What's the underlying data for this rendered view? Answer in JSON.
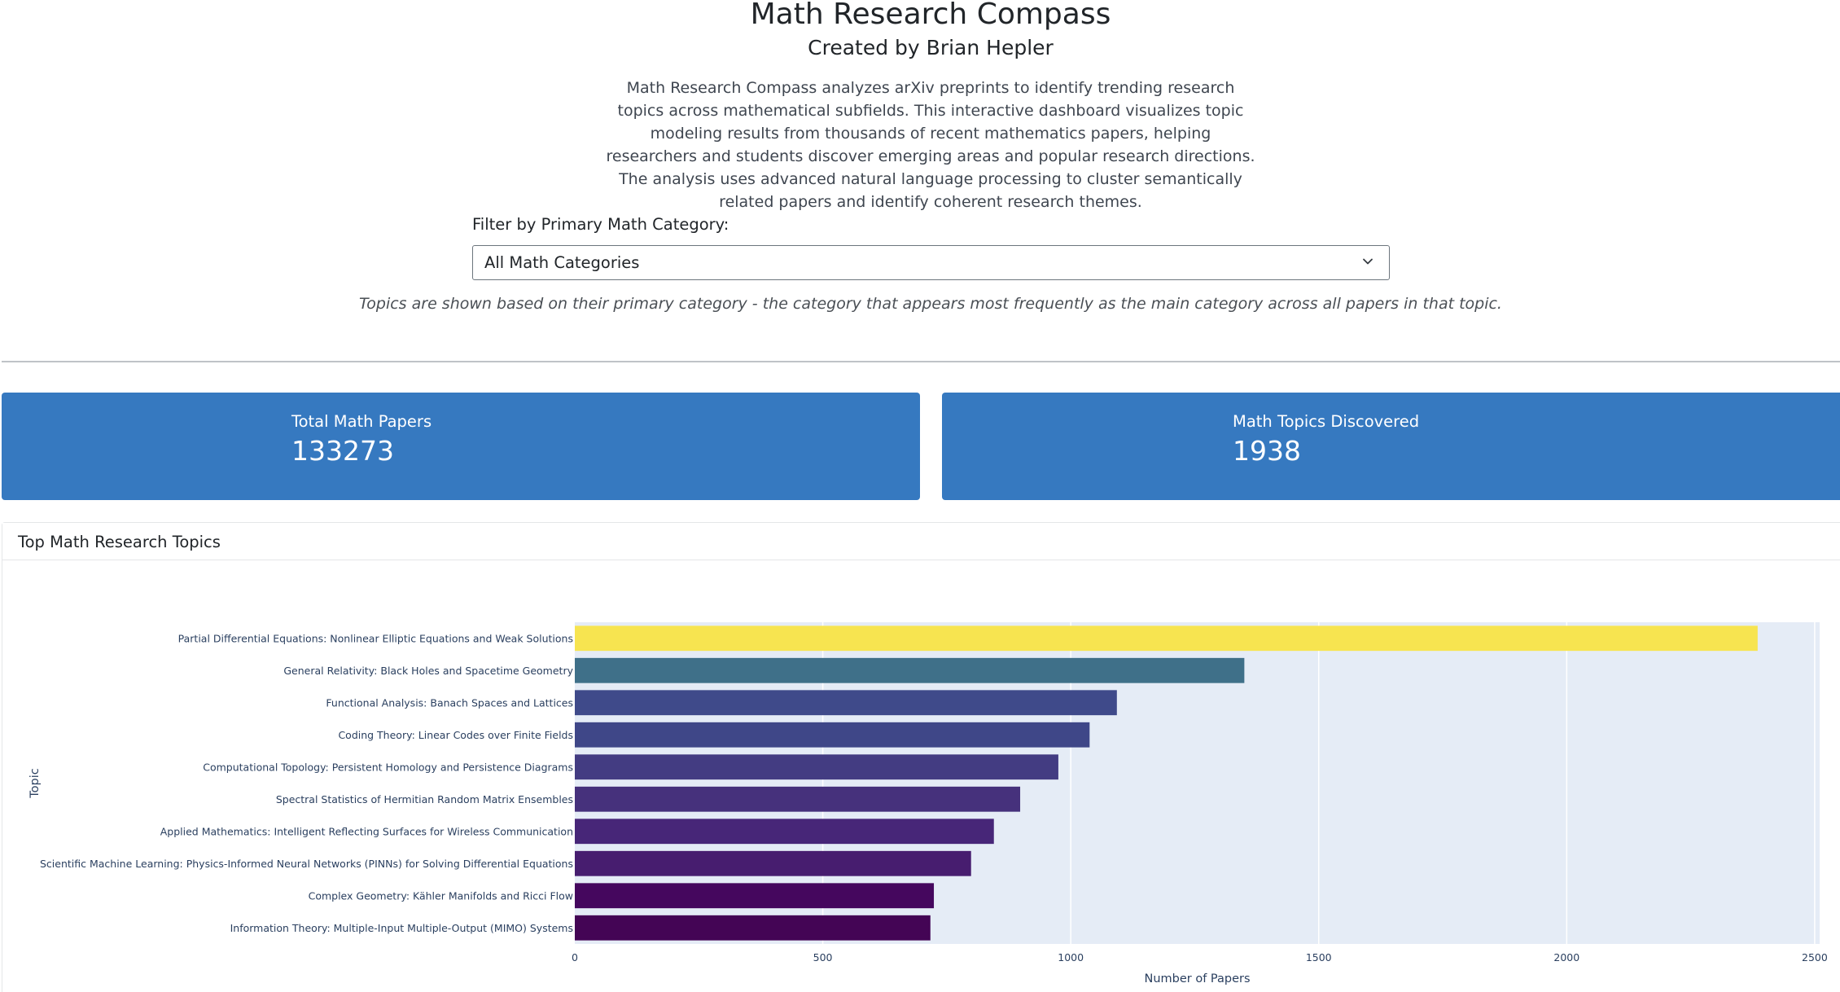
{
  "header": {
    "title": "Math Research Compass",
    "subtitle": "Created by Brian Hepler",
    "description": "Math Research Compass analyzes arXiv preprints to identify trending research topics across mathematical subfields. This interactive dashboard visualizes topic modeling results from thousands of recent mathematics papers, helping researchers and students discover emerging areas and popular research directions. The analysis uses advanced natural language processing to cluster semantically related papers and identify coherent research themes."
  },
  "filter": {
    "label": "Filter by Primary Math Category:",
    "selected": "All Math Categories",
    "note": "Topics are shown based on their primary category - the category that appears most frequently as the main category across all papers in that topic."
  },
  "stats": {
    "total_papers_label": "Total Math Papers",
    "total_papers_value": "133273",
    "topics_label": "Math Topics Discovered",
    "topics_value": "1938"
  },
  "chart_card": {
    "title": "Top Math Research Topics"
  },
  "colors": {
    "accent": "#3679c0",
    "plot_bg": "#e5ecf6"
  },
  "chart_data": {
    "type": "bar",
    "orientation": "horizontal",
    "xlabel": "Number of Papers",
    "ylabel": "Topic",
    "xlim": [
      0,
      2510
    ],
    "xticks": [
      0,
      500,
      1000,
      1500,
      2000,
      2500
    ],
    "grid": true,
    "categories": [
      "Partial Differential Equations: Nonlinear Elliptic Equations and Weak Solutions",
      "General Relativity: Black Holes and Spacetime Geometry",
      "Functional Analysis: Banach Spaces and Lattices",
      "Coding Theory: Linear Codes over Finite Fields",
      "Computational Topology: Persistent Homology and Persistence Diagrams",
      "Spectral Statistics of Hermitian Random Matrix Ensembles",
      "Applied Mathematics: Intelligent Reflecting Surfaces for Wireless Communication",
      "Scientific Machine Learning: Physics-Informed Neural Networks (PINNs) for Solving Differential Equations",
      "Complex Geometry: Kähler Manifolds and Ricci Flow",
      "Information Theory: Multiple-Input Multiple-Output (MIMO) Systems"
    ],
    "values": [
      2385,
      1350,
      1093,
      1038,
      975,
      898,
      845,
      799,
      724,
      717
    ],
    "bar_colors": [
      "#f7e450",
      "#3f7089",
      "#3f4a8a",
      "#3f4788",
      "#433c82",
      "#46317c",
      "#472678",
      "#471d6f",
      "#45075e",
      "#440555"
    ]
  }
}
